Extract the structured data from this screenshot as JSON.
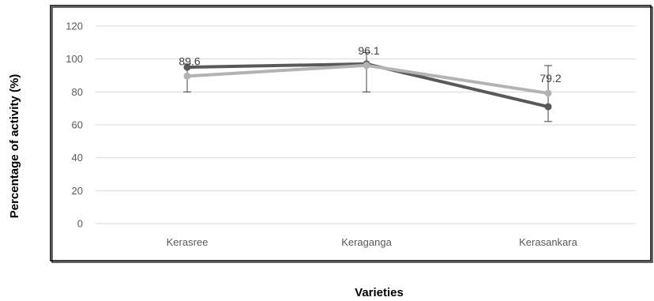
{
  "chart_data": {
    "type": "line",
    "title": "",
    "xlabel": "Varieties",
    "ylabel": "Percentage of activity (%)",
    "ylim": [
      0,
      120
    ],
    "yticks": [
      0,
      20,
      40,
      60,
      80,
      100,
      120
    ],
    "grid": true,
    "legend": "none",
    "categories": [
      "Kerasree",
      "Keraganga",
      "Kerasankara"
    ],
    "series": [
      {
        "color": "#595959",
        "values": [
          95,
          97,
          71
        ],
        "error_low": [
          80,
          80,
          62
        ],
        "error_high": [
          97,
          104,
          96
        ]
      },
      {
        "color": "#b3b3b3",
        "values": [
          89.6,
          96.1,
          79.2
        ],
        "data_labels": [
          "89.6",
          "96.1",
          "79.2"
        ]
      }
    ]
  }
}
